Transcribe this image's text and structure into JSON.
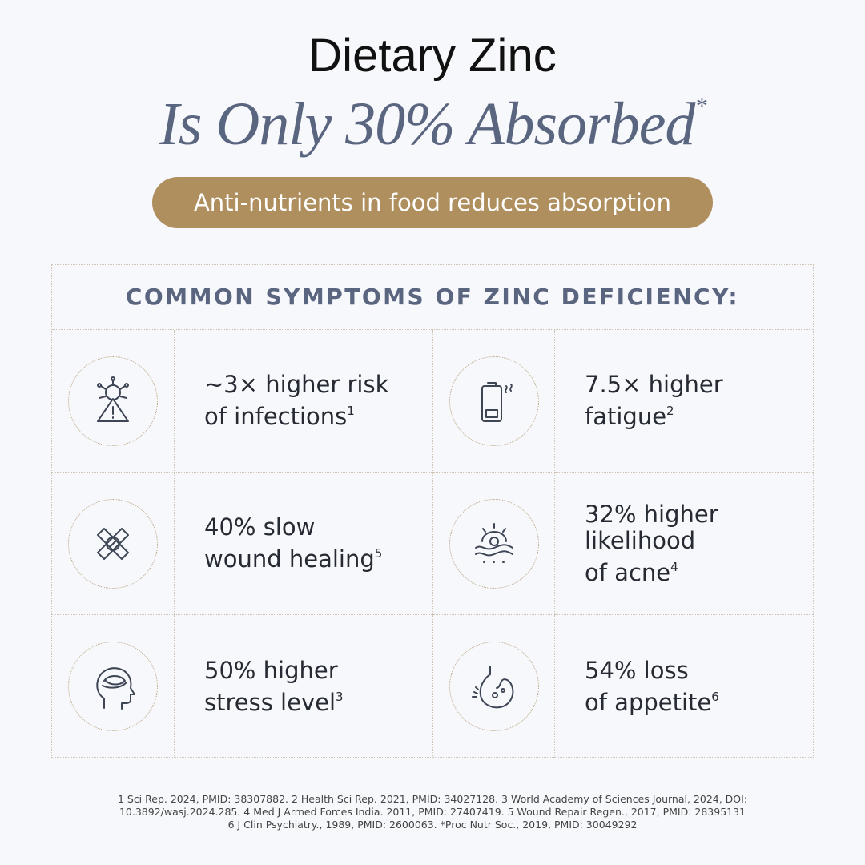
{
  "header": {
    "title": "Dietary Zinc",
    "subtitle": "Is Only 30% Absorbed",
    "subtitle_mark": "*",
    "badge": "Anti-nutrients in food reduces absorption"
  },
  "table": {
    "heading": "COMMON SYMPTOMS OF ZINC DEFICIENCY:",
    "items": [
      {
        "lines": [
          "~3× higher risk",
          "of infections"
        ],
        "ref": "1"
      },
      {
        "lines": [
          "7.5× higher",
          "fatigue"
        ],
        "ref": "2"
      },
      {
        "lines": [
          "40% slow",
          "wound healing"
        ],
        "ref": "5"
      },
      {
        "lines": [
          "32% higher",
          "likelihood",
          "of acne"
        ],
        "ref": "4"
      },
      {
        "lines": [
          "50% higher",
          "stress level"
        ],
        "ref": "3"
      },
      {
        "lines": [
          "54% loss",
          "of appetite"
        ],
        "ref": "6"
      }
    ]
  },
  "footnotes": [
    "1 Sci Rep. 2024, PMID: 38307882. 2 Health Sci Rep. 2021, PMID: 34027128. 3 World Academy of Sciences Journal, 2024, DOI:",
    "10.3892/wasj.2024.285. 4 Med J Armed Forces India. 2011, PMID: 27407419. 5 Wound Repair Regen., 2017, PMID: 28395131",
    "6 J Clin Psychiatry., 1989, PMID: 2600063. *Proc Nutr Soc., 2019, PMID: 30049292"
  ]
}
